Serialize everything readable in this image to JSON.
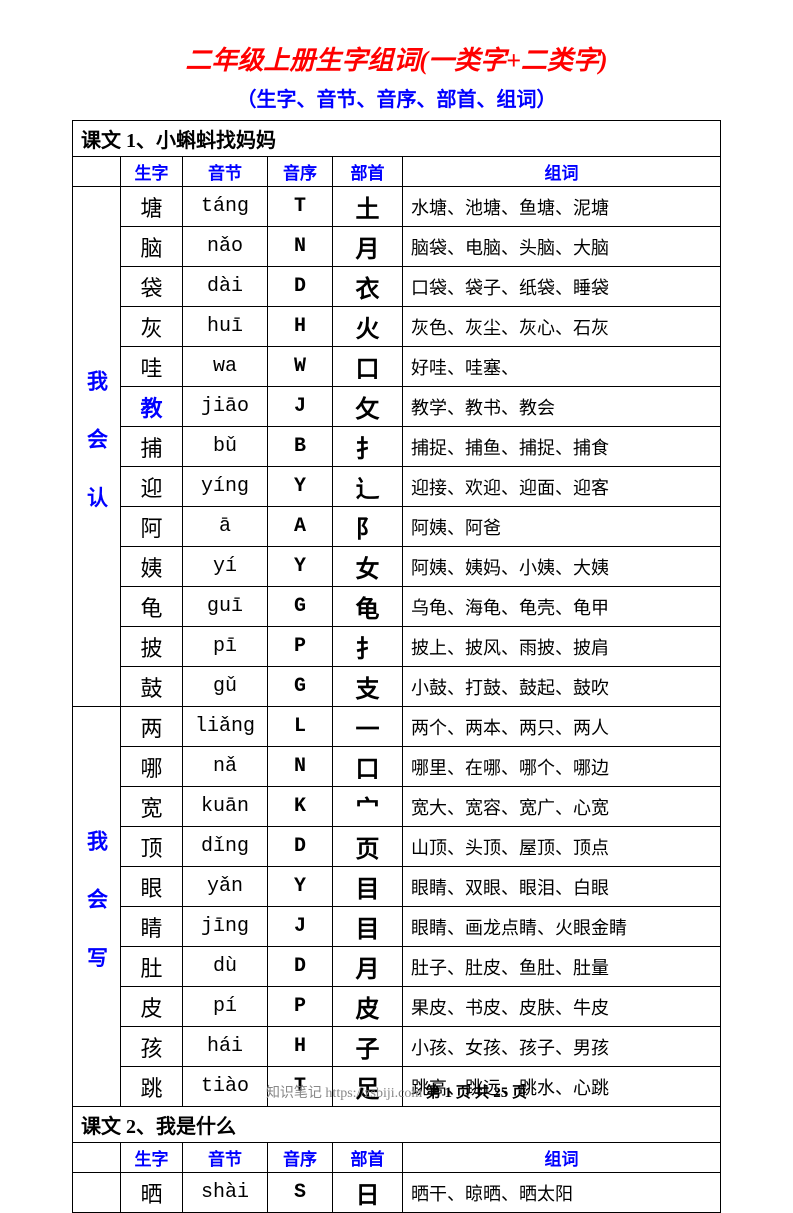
{
  "title": "二年级上册生字组词(一类字+二类字)",
  "subtitle": "（生字、音节、音序、部首、组词）",
  "columns": {
    "c0": "",
    "c1": "生字",
    "c2": "音节",
    "c3": "音序",
    "c4": "部首",
    "c5": "组词"
  },
  "colwidths": {
    "c0": 48,
    "c1": 62,
    "c2": 85,
    "c3": 65,
    "c4": 70,
    "c5": 318
  },
  "lessons": [
    {
      "title": "课文 1、小蝌蚪找妈妈",
      "groups": [
        {
          "label": "我 会 认",
          "rows": [
            {
              "sz": "塘",
              "yj": "táng",
              "yx": "T",
              "bs": "土",
              "zc": "水塘、池塘、鱼塘、泥塘"
            },
            {
              "sz": "脑",
              "yj": "nǎo",
              "yx": "N",
              "bs": "月",
              "zc": "脑袋、电脑、头脑、大脑"
            },
            {
              "sz": "袋",
              "yj": "dài",
              "yx": "D",
              "bs": "衣",
              "zc": "口袋、袋子、纸袋、睡袋"
            },
            {
              "sz": "灰",
              "yj": "huī",
              "yx": "H",
              "bs": "火",
              "zc": "灰色、灰尘、灰心、石灰"
            },
            {
              "sz": "哇",
              "yj": "wa",
              "yx": "W",
              "bs": "口",
              "zc": "好哇、哇塞、"
            },
            {
              "sz": "教",
              "yj": "jiāo",
              "yx": "J",
              "bs": "攵",
              "zc": "教学、教书、教会",
              "blue": true
            },
            {
              "sz": "捕",
              "yj": "bǔ",
              "yx": "B",
              "bs": "扌",
              "zc": "捕捉、捕鱼、捕捉、捕食"
            },
            {
              "sz": "迎",
              "yj": "yíng",
              "yx": "Y",
              "bs": "辶",
              "zc": "迎接、欢迎、迎面、迎客"
            },
            {
              "sz": "阿",
              "yj": "ā",
              "yx": "A",
              "bs": "阝",
              "zc": "阿姨、阿爸"
            },
            {
              "sz": "姨",
              "yj": "yí",
              "yx": "Y",
              "bs": "女",
              "zc": "阿姨、姨妈、小姨、大姨"
            },
            {
              "sz": "龟",
              "yj": "guī",
              "yx": "G",
              "bs": "龟",
              "zc": "乌龟、海龟、龟壳、龟甲"
            },
            {
              "sz": "披",
              "yj": "pī",
              "yx": "P",
              "bs": "扌",
              "zc": "披上、披风、雨披、披肩"
            },
            {
              "sz": "鼓",
              "yj": "gǔ",
              "yx": "G",
              "bs": "支",
              "zc": "小鼓、打鼓、鼓起、鼓吹"
            }
          ]
        },
        {
          "label": "我 会 写",
          "rows": [
            {
              "sz": "两",
              "yj": "liǎng",
              "yx": "L",
              "bs": "一",
              "zc": "两个、两本、两只、两人"
            },
            {
              "sz": "哪",
              "yj": "nǎ",
              "yx": "N",
              "bs": "口",
              "zc": "哪里、在哪、哪个、哪边"
            },
            {
              "sz": "宽",
              "yj": "kuān",
              "yx": "K",
              "bs": "宀",
              "zc": "宽大、宽容、宽广、心宽"
            },
            {
              "sz": "顶",
              "yj": "dǐng",
              "yx": "D",
              "bs": "页",
              "zc": "山顶、头顶、屋顶、顶点"
            },
            {
              "sz": "眼",
              "yj": "yǎn",
              "yx": "Y",
              "bs": "目",
              "zc": "眼睛、双眼、眼泪、白眼"
            },
            {
              "sz": "睛",
              "yj": "jīng",
              "yx": "J",
              "bs": "目",
              "zc": "眼睛、画龙点睛、火眼金睛"
            },
            {
              "sz": "肚",
              "yj": "dù",
              "yx": "D",
              "bs": "月",
              "zc": "肚子、肚皮、鱼肚、肚量"
            },
            {
              "sz": "皮",
              "yj": "pí",
              "yx": "P",
              "bs": "皮",
              "zc": "果皮、书皮、皮肤、牛皮"
            },
            {
              "sz": "孩",
              "yj": "hái",
              "yx": "H",
              "bs": "子",
              "zc": "小孩、女孩、孩子、男孩"
            },
            {
              "sz": "跳",
              "yj": "tiào",
              "yx": "T",
              "bs": "足",
              "zc": "跳高、跳远、跳水、心跳"
            }
          ]
        }
      ]
    },
    {
      "title": "课文 2、我是什么",
      "groups": [
        {
          "label": "",
          "rows": [
            {
              "sz": "晒",
              "yj": "shài",
              "yx": "S",
              "bs": "日",
              "zc": "晒干、晾晒、晒太阳"
            }
          ]
        }
      ]
    }
  ],
  "footer": {
    "watermark": "知识笔记 https://zsbiji.com",
    "page": "第 1 页 共 25 页"
  },
  "colors": {
    "title": "#ff0000",
    "blue": "#0000ff",
    "border": "#000000",
    "bg": "#ffffff"
  }
}
